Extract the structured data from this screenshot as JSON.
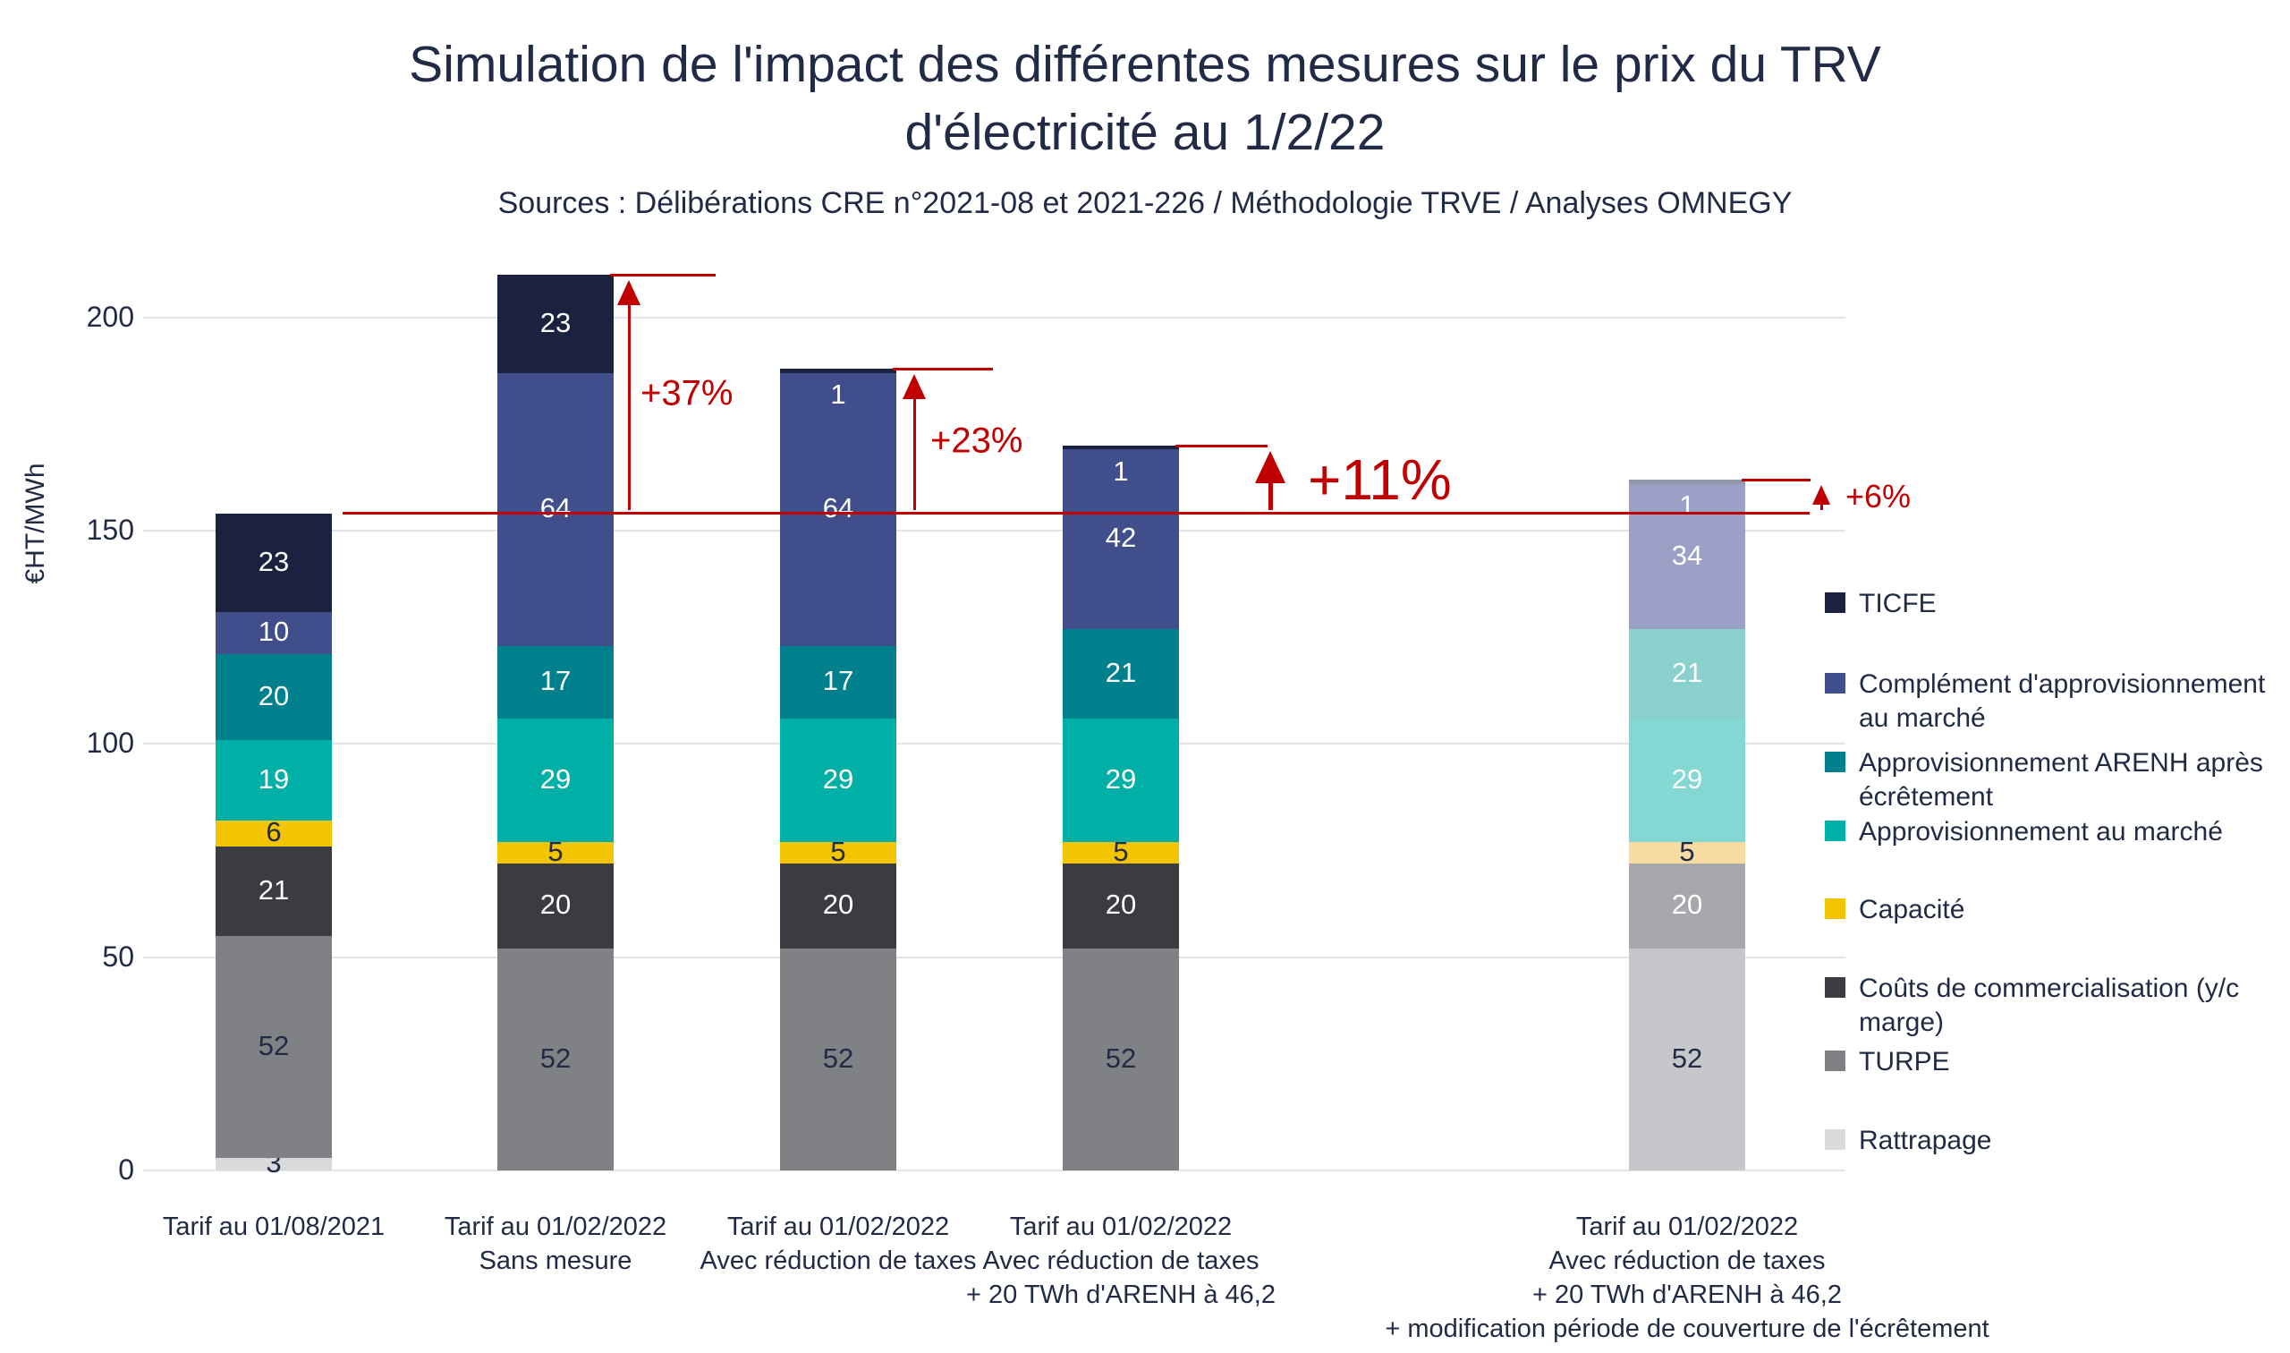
{
  "title": {
    "line1": "Simulation de l'impact des différentes mesures sur le prix du TRV",
    "line2": "d'électricité au 1/2/22"
  },
  "subtitle": "Sources : Délibérations CRE n°2021-08 et 2021-226 / Méthodologie TRVE / Analyses OMNEGY",
  "y_axis": {
    "label": "€HT/MWh",
    "ticks": [
      0,
      50,
      100,
      150,
      200
    ]
  },
  "colors": {
    "red_annotation": "#c00000",
    "grid": "#e4e4e6",
    "text": "#222b45",
    "background": "#ffffff"
  },
  "chart_data": {
    "type": "bar",
    "stacked": true,
    "title": "Simulation de l'impact des différentes mesures sur le prix du TRV d'électricité au 1/2/22",
    "subtitle": "Sources : Délibérations CRE n°2021-08 et 2021-226 / Méthodologie TRVE / Analyses OMNEGY",
    "xlabel": "",
    "ylabel": "€HT/MWh",
    "ylim": [
      0,
      215
    ],
    "yticks": [
      0,
      50,
      100,
      150,
      200
    ],
    "grid": true,
    "legend_position": "right",
    "categories": [
      [
        "Tarif au 01/08/2021"
      ],
      [
        "Tarif au 01/02/2022",
        "Sans mesure"
      ],
      [
        "Tarif au 01/02/2022",
        "Avec réduction de taxes"
      ],
      [
        "Tarif au 01/02/2022",
        "Avec réduction de taxes",
        "+ 20 TWh d'ARENH à 46,2"
      ],
      [
        "Tarif au 01/02/2022",
        "Avec réduction de taxes",
        "+ 20 TWh d'ARENH à 46,2",
        "+ modification période de couverture de l'écrêtement"
      ]
    ],
    "series": [
      {
        "name": "Rattrapage",
        "color": "#dadadc",
        "muted_color": "#dadadc",
        "label_style": "dark",
        "values": [
          3,
          0,
          0,
          0,
          0
        ]
      },
      {
        "name": "TURPE",
        "color": "#808184",
        "muted_color": "#c7c7cb",
        "label_style": "dark",
        "values": [
          52,
          52,
          52,
          52,
          52
        ]
      },
      {
        "name": "Coûts de commercialisation (y/c marge)",
        "color": "#3a3c41",
        "muted_color": "#a7a8ab",
        "label_style": "light",
        "values": [
          21,
          20,
          20,
          20,
          20
        ]
      },
      {
        "name": "Capacité",
        "color": "#f2c500",
        "muted_color": "#f8dba2",
        "label_style": "dark",
        "values": [
          6,
          5,
          5,
          5,
          5
        ]
      },
      {
        "name": "Approvisionnement au marché",
        "color": "#00b0a6",
        "muted_color": "#84d8d4",
        "label_style": "light",
        "values": [
          19,
          29,
          29,
          29,
          29
        ]
      },
      {
        "name": "Approvisionnement ARENH après écrêtement",
        "color": "#007f8c",
        "muted_color": "#8ad0cc",
        "label_style": "light",
        "values": [
          20,
          17,
          17,
          21,
          21
        ]
      },
      {
        "name": "Complément d'approvisionnement au marché",
        "color": "#414e8c",
        "muted_color": "#9ba0c7",
        "label_style": "light",
        "values": [
          10,
          64,
          64,
          42,
          34
        ]
      },
      {
        "name": "TICFE",
        "color": "#1b2240",
        "muted_color": "#9298a9",
        "label_style": "light",
        "values": [
          23,
          23,
          1,
          1,
          1
        ]
      }
    ],
    "muted_bar_index": 4,
    "totals": [
      154,
      210,
      188,
      170,
      162
    ],
    "reference_line": {
      "value": 154
    },
    "annotations": [
      {
        "target_bar": 1,
        "label": "+37%",
        "from_value": 154,
        "to_value": 210
      },
      {
        "target_bar": 2,
        "label": "+23%",
        "from_value": 154,
        "to_value": 188
      },
      {
        "target_bar": 3,
        "label": "+11%",
        "from_value": 154,
        "to_value": 170,
        "emphasis": true
      },
      {
        "target_bar": 4,
        "label": "+6%",
        "from_value": 154,
        "to_value": 162
      }
    ]
  },
  "legend": {
    "items": [
      {
        "lines": [
          "TICFE"
        ],
        "color": "#1b2240"
      },
      {
        "lines": [
          "Complément d'approvisionnement",
          "au marché"
        ],
        "color": "#414e8c"
      },
      {
        "lines": [
          "Approvisionnement ARENH après",
          "écrêtement"
        ],
        "color": "#007f8c"
      },
      {
        "lines": [
          "Approvisionnement au marché"
        ],
        "color": "#00b0a6"
      },
      {
        "lines": [
          "Capacité"
        ],
        "color": "#f2c500"
      },
      {
        "lines": [
          "Coûts de commercialisation (y/c",
          "marge)"
        ],
        "color": "#3a3c41"
      },
      {
        "lines": [
          "TURPE"
        ],
        "color": "#808184"
      },
      {
        "lines": [
          "Rattrapage"
        ],
        "color": "#dadadc"
      }
    ]
  }
}
